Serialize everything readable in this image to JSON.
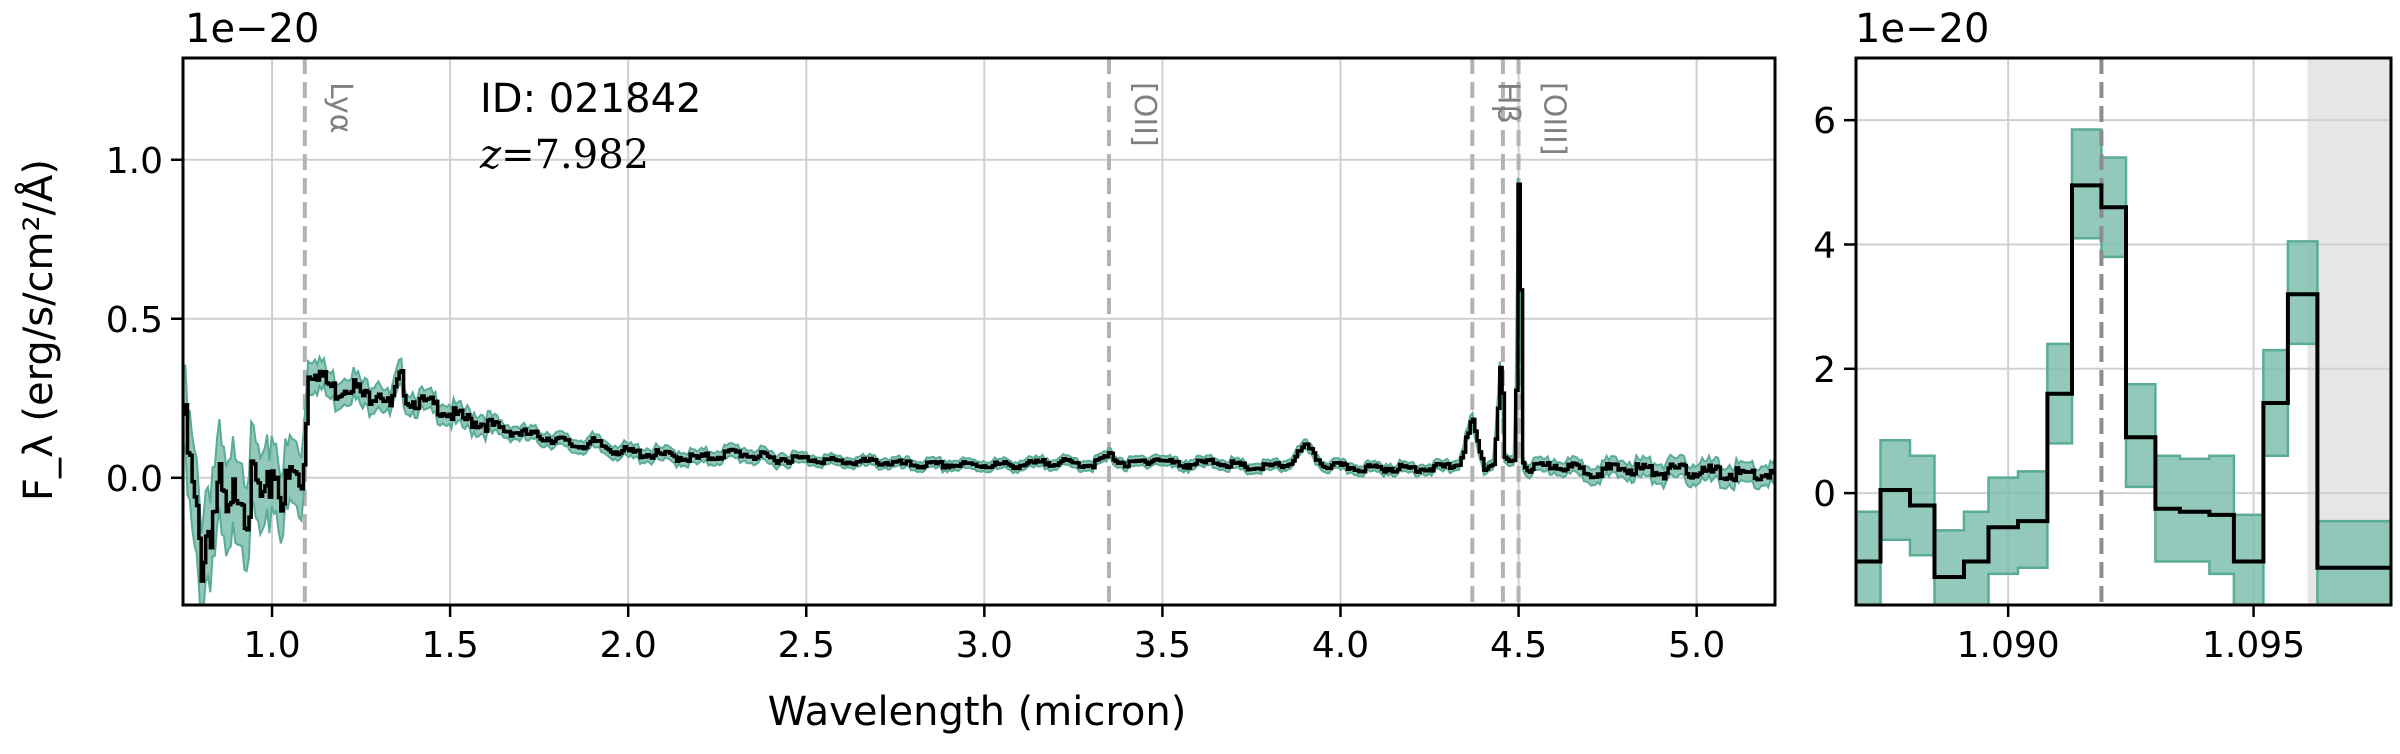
{
  "chart_data": [
    {
      "type": "line",
      "panel": "main",
      "xlabel": "Wavelength (micron)",
      "ylabel": "F_λ (erg/s/cm²/Å)",
      "y_offset_label": "1e−20",
      "xlim": [
        0.75,
        5.22
      ],
      "ylim": [
        -0.4,
        1.32
      ],
      "x_ticks": [
        1.0,
        1.5,
        2.0,
        2.5,
        3.0,
        3.5,
        4.0,
        4.5,
        5.0
      ],
      "x_tick_labels": [
        "1.0",
        "1.5",
        "2.0",
        "2.5",
        "3.0",
        "3.5",
        "4.0",
        "4.5",
        "5.0"
      ],
      "y_ticks": [
        0.0,
        0.5,
        1.0
      ],
      "y_tick_labels": [
        "0.0",
        "0.5",
        "1.0"
      ],
      "grid": true,
      "annotations": {
        "id_text": "ID: 021842",
        "z_label": "z",
        "z_value": "=7.982"
      },
      "emission_lines": [
        {
          "name": "Lyα",
          "x": 1.092
        },
        {
          "name": "[OII]",
          "x": 3.35
        },
        {
          "name": "Hβ",
          "x": 4.37
        },
        {
          "name": "[OIII]",
          "x": 4.456
        },
        {
          "name": "[OIII]",
          "x": 4.5
        }
      ],
      "series": [
        {
          "x": [
            0.75,
            0.78,
            0.8,
            0.82,
            0.85,
            0.88,
            0.9,
            0.93,
            0.95,
            0.98,
            1.0,
            1.03,
            1.06,
            1.08,
            1.09,
            1.1,
            1.12,
            1.15,
            1.18,
            1.22,
            1.26,
            1.3,
            1.33,
            1.36,
            1.38,
            1.4,
            1.45,
            1.5,
            1.55,
            1.6,
            1.65,
            1.7,
            1.75,
            1.8,
            1.85,
            1.9,
            1.95,
            2.0,
            2.1,
            2.2,
            2.3,
            2.4,
            2.5,
            2.6,
            2.7,
            2.8,
            2.9,
            3.0,
            3.1,
            3.2,
            3.3,
            3.35,
            3.4,
            3.48,
            3.55,
            3.65,
            3.75,
            3.85,
            3.9,
            3.95,
            4.05,
            4.15,
            4.25,
            4.33,
            4.37,
            4.4,
            4.43,
            4.45,
            4.46,
            4.47,
            4.49,
            4.5,
            4.51,
            4.52,
            4.55,
            4.6,
            4.7,
            4.8,
            4.9,
            5.0,
            5.1,
            5.22
          ],
          "y": [
            0.2,
            -0.1,
            -0.25,
            -0.15,
            -0.05,
            -0.18,
            0.02,
            -0.08,
            -0.02,
            -0.12,
            0.05,
            -0.06,
            0.02,
            -0.05,
            0.1,
            0.32,
            0.35,
            0.3,
            0.27,
            0.3,
            0.25,
            0.28,
            0.22,
            0.32,
            0.24,
            0.24,
            0.23,
            0.2,
            0.18,
            0.17,
            0.15,
            0.14,
            0.13,
            0.12,
            0.1,
            0.11,
            0.09,
            0.08,
            0.07,
            0.06,
            0.08,
            0.06,
            0.06,
            0.05,
            0.05,
            0.04,
            0.04,
            0.04,
            0.04,
            0.05,
            0.04,
            0.07,
            0.04,
            0.06,
            0.04,
            0.05,
            0.03,
            0.04,
            0.1,
            0.04,
            0.03,
            0.03,
            0.03,
            0.04,
            0.18,
            0.03,
            0.05,
            0.38,
            0.06,
            0.05,
            0.05,
            1.1,
            0.05,
            0.03,
            0.03,
            0.04,
            0.02,
            0.03,
            0.02,
            0.02,
            0.01,
            0.01
          ],
          "err": [
            0.12,
            0.15,
            0.15,
            0.14,
            0.14,
            0.14,
            0.13,
            0.13,
            0.12,
            0.12,
            0.11,
            0.1,
            0.1,
            0.1,
            0.1,
            0.05,
            0.05,
            0.04,
            0.04,
            0.04,
            0.04,
            0.04,
            0.03,
            0.04,
            0.03,
            0.03,
            0.03,
            0.03,
            0.03,
            0.03,
            0.02,
            0.02,
            0.02,
            0.02,
            0.02,
            0.02,
            0.02,
            0.02,
            0.02,
            0.02,
            0.02,
            0.02,
            0.015,
            0.015,
            0.015,
            0.015,
            0.015,
            0.015,
            0.015,
            0.015,
            0.015,
            0.015,
            0.015,
            0.015,
            0.015,
            0.015,
            0.015,
            0.015,
            0.015,
            0.015,
            0.015,
            0.015,
            0.015,
            0.015,
            0.02,
            0.015,
            0.015,
            0.02,
            0.015,
            0.015,
            0.015,
            0.02,
            0.02,
            0.02,
            0.02,
            0.02,
            0.025,
            0.025,
            0.03,
            0.03,
            0.03,
            0.03
          ]
        }
      ]
    },
    {
      "type": "line",
      "panel": "zoom",
      "y_offset_label": "1e−20",
      "xlim": [
        1.0869,
        1.0978
      ],
      "ylim": [
        -1.8,
        7.0
      ],
      "x_ticks": [
        1.09,
        1.095
      ],
      "x_tick_labels": [
        "1.090",
        "1.095"
      ],
      "y_ticks": [
        0,
        2,
        4,
        6
      ],
      "y_tick_labels": [
        "0",
        "2",
        "4",
        "6"
      ],
      "grid": true,
      "emission_lines": [
        {
          "name": "Lyα",
          "x": 1.0919
        }
      ],
      "masked_region": [
        1.0961,
        1.0978
      ],
      "series": [
        {
          "edges": [
            1.0869,
            1.0874,
            1.088,
            1.0885,
            1.0891,
            1.0896,
            1.0902,
            1.0908,
            1.0913,
            1.0919,
            1.0924,
            1.093,
            1.0935,
            1.0941,
            1.0946,
            1.0952,
            1.0957,
            1.0963,
            1.0968,
            1.0974,
            1.0978
          ],
          "y": [
            -1.1,
            0.05,
            -0.2,
            -1.35,
            -1.1,
            -0.55,
            -0.45,
            1.6,
            4.95,
            4.6,
            0.9,
            -0.25,
            -0.3,
            -0.35,
            -1.1,
            1.45,
            3.2,
            -1.2,
            -1.2,
            -1.2
          ],
          "lo": [
            -1.8,
            -0.75,
            -1.0,
            -1.8,
            -1.8,
            -1.3,
            -1.2,
            0.8,
            4.1,
            3.8,
            0.1,
            -1.1,
            -1.1,
            -1.3,
            -1.8,
            0.6,
            2.4,
            -1.8,
            -1.8,
            -1.8
          ],
          "hi": [
            -0.3,
            0.85,
            0.6,
            -0.6,
            -0.3,
            0.25,
            0.35,
            2.4,
            5.85,
            5.4,
            1.75,
            0.6,
            0.55,
            0.6,
            -0.35,
            2.3,
            4.05,
            -0.45,
            -0.45,
            -0.45
          ]
        }
      ]
    }
  ]
}
